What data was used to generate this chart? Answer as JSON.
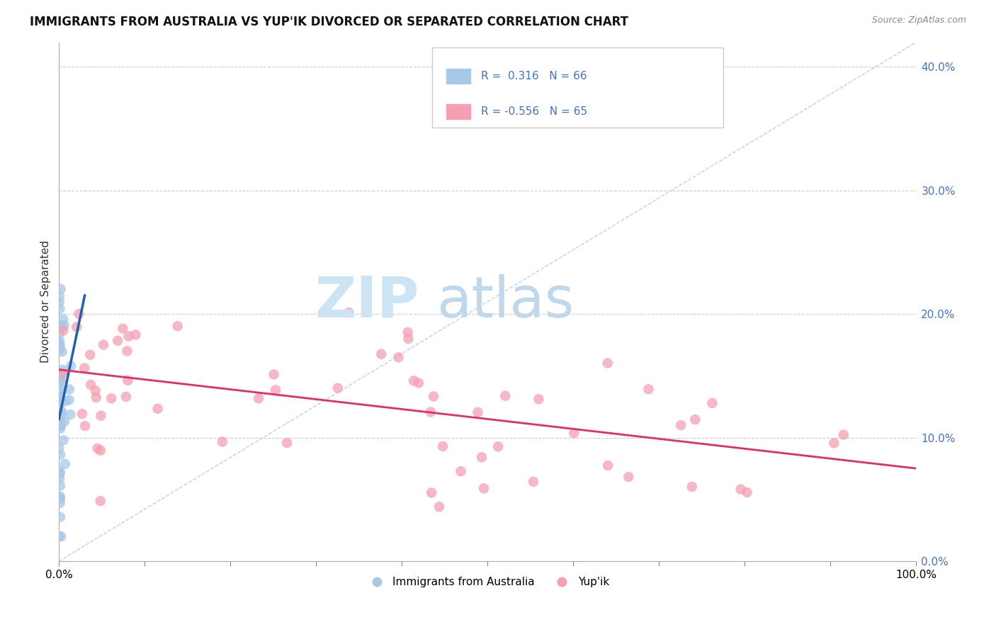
{
  "title": "IMMIGRANTS FROM AUSTRALIA VS YUP'IK DIVORCED OR SEPARATED CORRELATION CHART",
  "source": "Source: ZipAtlas.com",
  "ylabel": "Divorced or Separated",
  "xlabel": "",
  "legend_label1": "Immigrants from Australia",
  "legend_label2": "Yup'ik",
  "r1": 0.316,
  "n1": 66,
  "r2": -0.556,
  "n2": 65,
  "color1": "#a8c8e8",
  "color2": "#f4a0b0",
  "line_color1": "#2060b0",
  "line_color2": "#e03060",
  "diag_color": "#aac8e0",
  "watermark_zip_color": "#cce4f4",
  "watermark_atlas_color": "#c0d8ec",
  "xlim": [
    0.0,
    1.0
  ],
  "ylim": [
    0.0,
    0.42
  ],
  "yticks": [
    0.0,
    0.1,
    0.2,
    0.3,
    0.4
  ],
  "ytick_labels": [
    "0.0%",
    "10.0%",
    "20.0%",
    "30.0%",
    "40.0%"
  ],
  "xtick_positions": [
    0.0,
    0.1,
    0.2,
    0.3,
    0.4,
    0.5,
    0.6,
    0.7,
    0.8,
    0.9,
    1.0
  ],
  "xtick_labels_show": [
    "0.0%",
    "",
    "",
    "",
    "",
    "",
    "",
    "",
    "",
    "",
    "100.0%"
  ],
  "bg_color": "#ffffff",
  "grid_color": "#cccccc",
  "blue_line_x": [
    0.0,
    0.03
  ],
  "blue_line_y": [
    0.115,
    0.215
  ],
  "pink_line_x": [
    0.0,
    1.0
  ],
  "pink_line_y": [
    0.155,
    0.075
  ],
  "diag_line_x": [
    0.0,
    1.0
  ],
  "diag_line_y": [
    0.0,
    0.42
  ]
}
